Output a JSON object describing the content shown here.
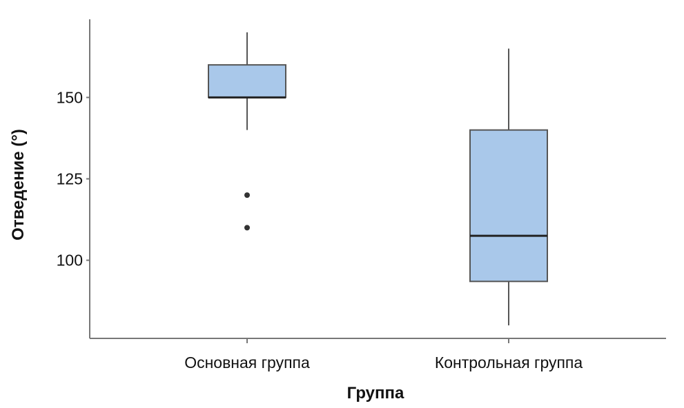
{
  "chart_data": {
    "type": "boxplot",
    "title": "",
    "xlabel": "Группа",
    "ylabel": "Отведение (°)",
    "ylim": [
      76,
      174
    ],
    "yticks": [
      100,
      125,
      150
    ],
    "grid": false,
    "categories": [
      "Основная группа",
      "Контрольная группа"
    ],
    "boxes": [
      {
        "name": "Основная группа",
        "whisker_low": 140,
        "q1": 150,
        "median": 150,
        "q3": 160,
        "whisker_high": 170,
        "outliers": [
          120,
          110
        ]
      },
      {
        "name": "Контрольная группа",
        "whisker_low": 80,
        "q1": 93.5,
        "median": 107.5,
        "q3": 140,
        "whisker_high": 165,
        "outliers": []
      }
    ],
    "colors": {
      "box_fill": "#a9c8ea",
      "box_stroke": "#555555",
      "median": "#222222",
      "axis": "#777777"
    }
  }
}
